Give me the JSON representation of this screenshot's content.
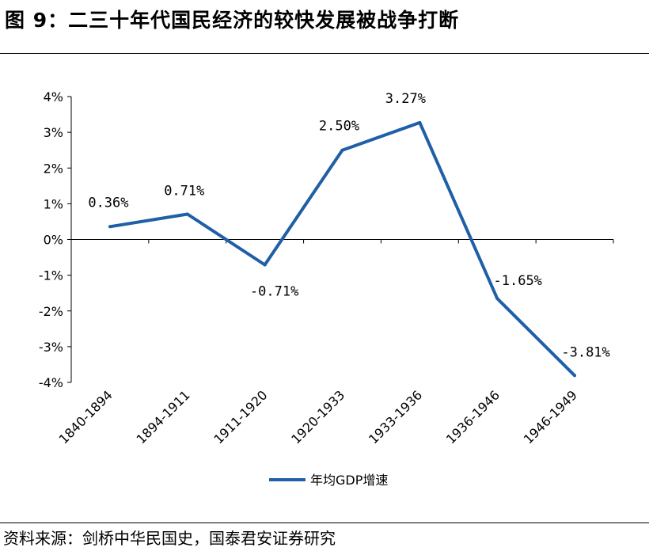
{
  "title": "图 9：二三十年代国民经济的较快发展被战争打断",
  "source": "资料来源：剑桥中华民国史，国泰君安证券研究",
  "colors": {
    "series": "#1f5fa6",
    "axis": "#000000"
  },
  "chart_data": {
    "type": "line",
    "categories": [
      "1840-1894",
      "1894-1911",
      "1911-1920",
      "1920-1933",
      "1933-1936",
      "1936-1946",
      "1946-1949"
    ],
    "series": [
      {
        "name": "年均GDP增速",
        "values": [
          0.36,
          0.71,
          -0.71,
          2.5,
          3.27,
          -1.65,
          -3.81
        ]
      }
    ],
    "data_labels": [
      "0.36%",
      "0.71%",
      "-0.71%",
      "2.50%",
      "3.27%",
      "-1.65%",
      "-3.81%"
    ],
    "y_ticks": [
      "4%",
      "3%",
      "2%",
      "1%",
      "0%",
      "-1%",
      "-2%",
      "-3%",
      "-4%"
    ],
    "ylim": [
      -4,
      4
    ],
    "y_unit": "%",
    "grid": false,
    "legend": "bottom-center"
  }
}
